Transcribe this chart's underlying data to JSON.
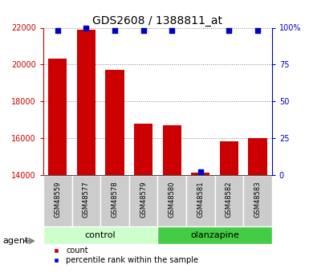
{
  "title": "GDS2608 / 1388811_at",
  "samples": [
    "GSM48559",
    "GSM48577",
    "GSM48578",
    "GSM48579",
    "GSM48580",
    "GSM48581",
    "GSM48582",
    "GSM48583"
  ],
  "counts": [
    20300,
    21900,
    19700,
    16800,
    16700,
    14100,
    15800,
    16000
  ],
  "percentile_ranks": [
    98,
    100,
    98,
    98,
    98,
    2,
    98,
    98
  ],
  "ylim_left": [
    14000,
    22000
  ],
  "yticks_left": [
    14000,
    16000,
    18000,
    20000,
    22000
  ],
  "ylim_right": [
    0,
    100
  ],
  "yticks_right": [
    0,
    25,
    50,
    75,
    100
  ],
  "yticklabels_right": [
    "0",
    "25",
    "50",
    "75",
    "100%"
  ],
  "bar_color": "#cc0000",
  "dot_color": "#0000cc",
  "groups": [
    {
      "label": "control",
      "indices": [
        0,
        1,
        2,
        3
      ],
      "color": "#ccffcc"
    },
    {
      "label": "olanzapine",
      "indices": [
        4,
        5,
        6,
        7
      ],
      "color": "#44cc44"
    }
  ],
  "agent_label": "agent",
  "legend_items": [
    {
      "label": "count",
      "color": "#cc0000"
    },
    {
      "label": "percentile rank within the sample",
      "color": "#0000cc"
    }
  ],
  "background_color": "#ffffff",
  "sample_box_color": "#cccccc",
  "title_fontsize": 10,
  "tick_fontsize": 7,
  "sample_fontsize": 6,
  "label_fontsize": 8,
  "legend_fontsize": 7
}
